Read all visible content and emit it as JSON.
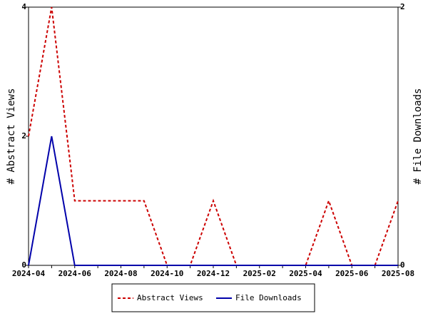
{
  "chart_data": {
    "type": "line",
    "categories": [
      "2024-04",
      null,
      "2024-06",
      null,
      "2024-08",
      null,
      "2024-10",
      null,
      "2024-12",
      null,
      "2025-02",
      null,
      "2025-04",
      null,
      "2025-06",
      null,
      "2025-08"
    ],
    "series": [
      {
        "name": "Abstract Views",
        "color": "#cc0000",
        "style": "dashed",
        "axis": "y",
        "values": [
          2,
          4,
          1,
          1,
          1,
          1,
          0,
          0,
          1,
          0,
          0,
          0,
          0,
          1,
          0,
          0,
          1
        ]
      },
      {
        "name": "File Downloads",
        "color": "#0000aa",
        "style": "solid",
        "axis": "y2",
        "values": [
          0,
          1,
          0,
          0,
          0,
          0,
          0,
          0,
          0,
          0,
          0,
          0,
          0,
          0,
          0,
          0,
          0
        ]
      }
    ],
    "ylabel": "# Abstract Views",
    "y2label": "# File Downloads",
    "ylim": [
      0,
      4
    ],
    "yticks": [
      0,
      2,
      4
    ],
    "y2lim": [
      0,
      2
    ],
    "y2ticks": [
      0,
      2
    ],
    "legend": "bottom"
  }
}
